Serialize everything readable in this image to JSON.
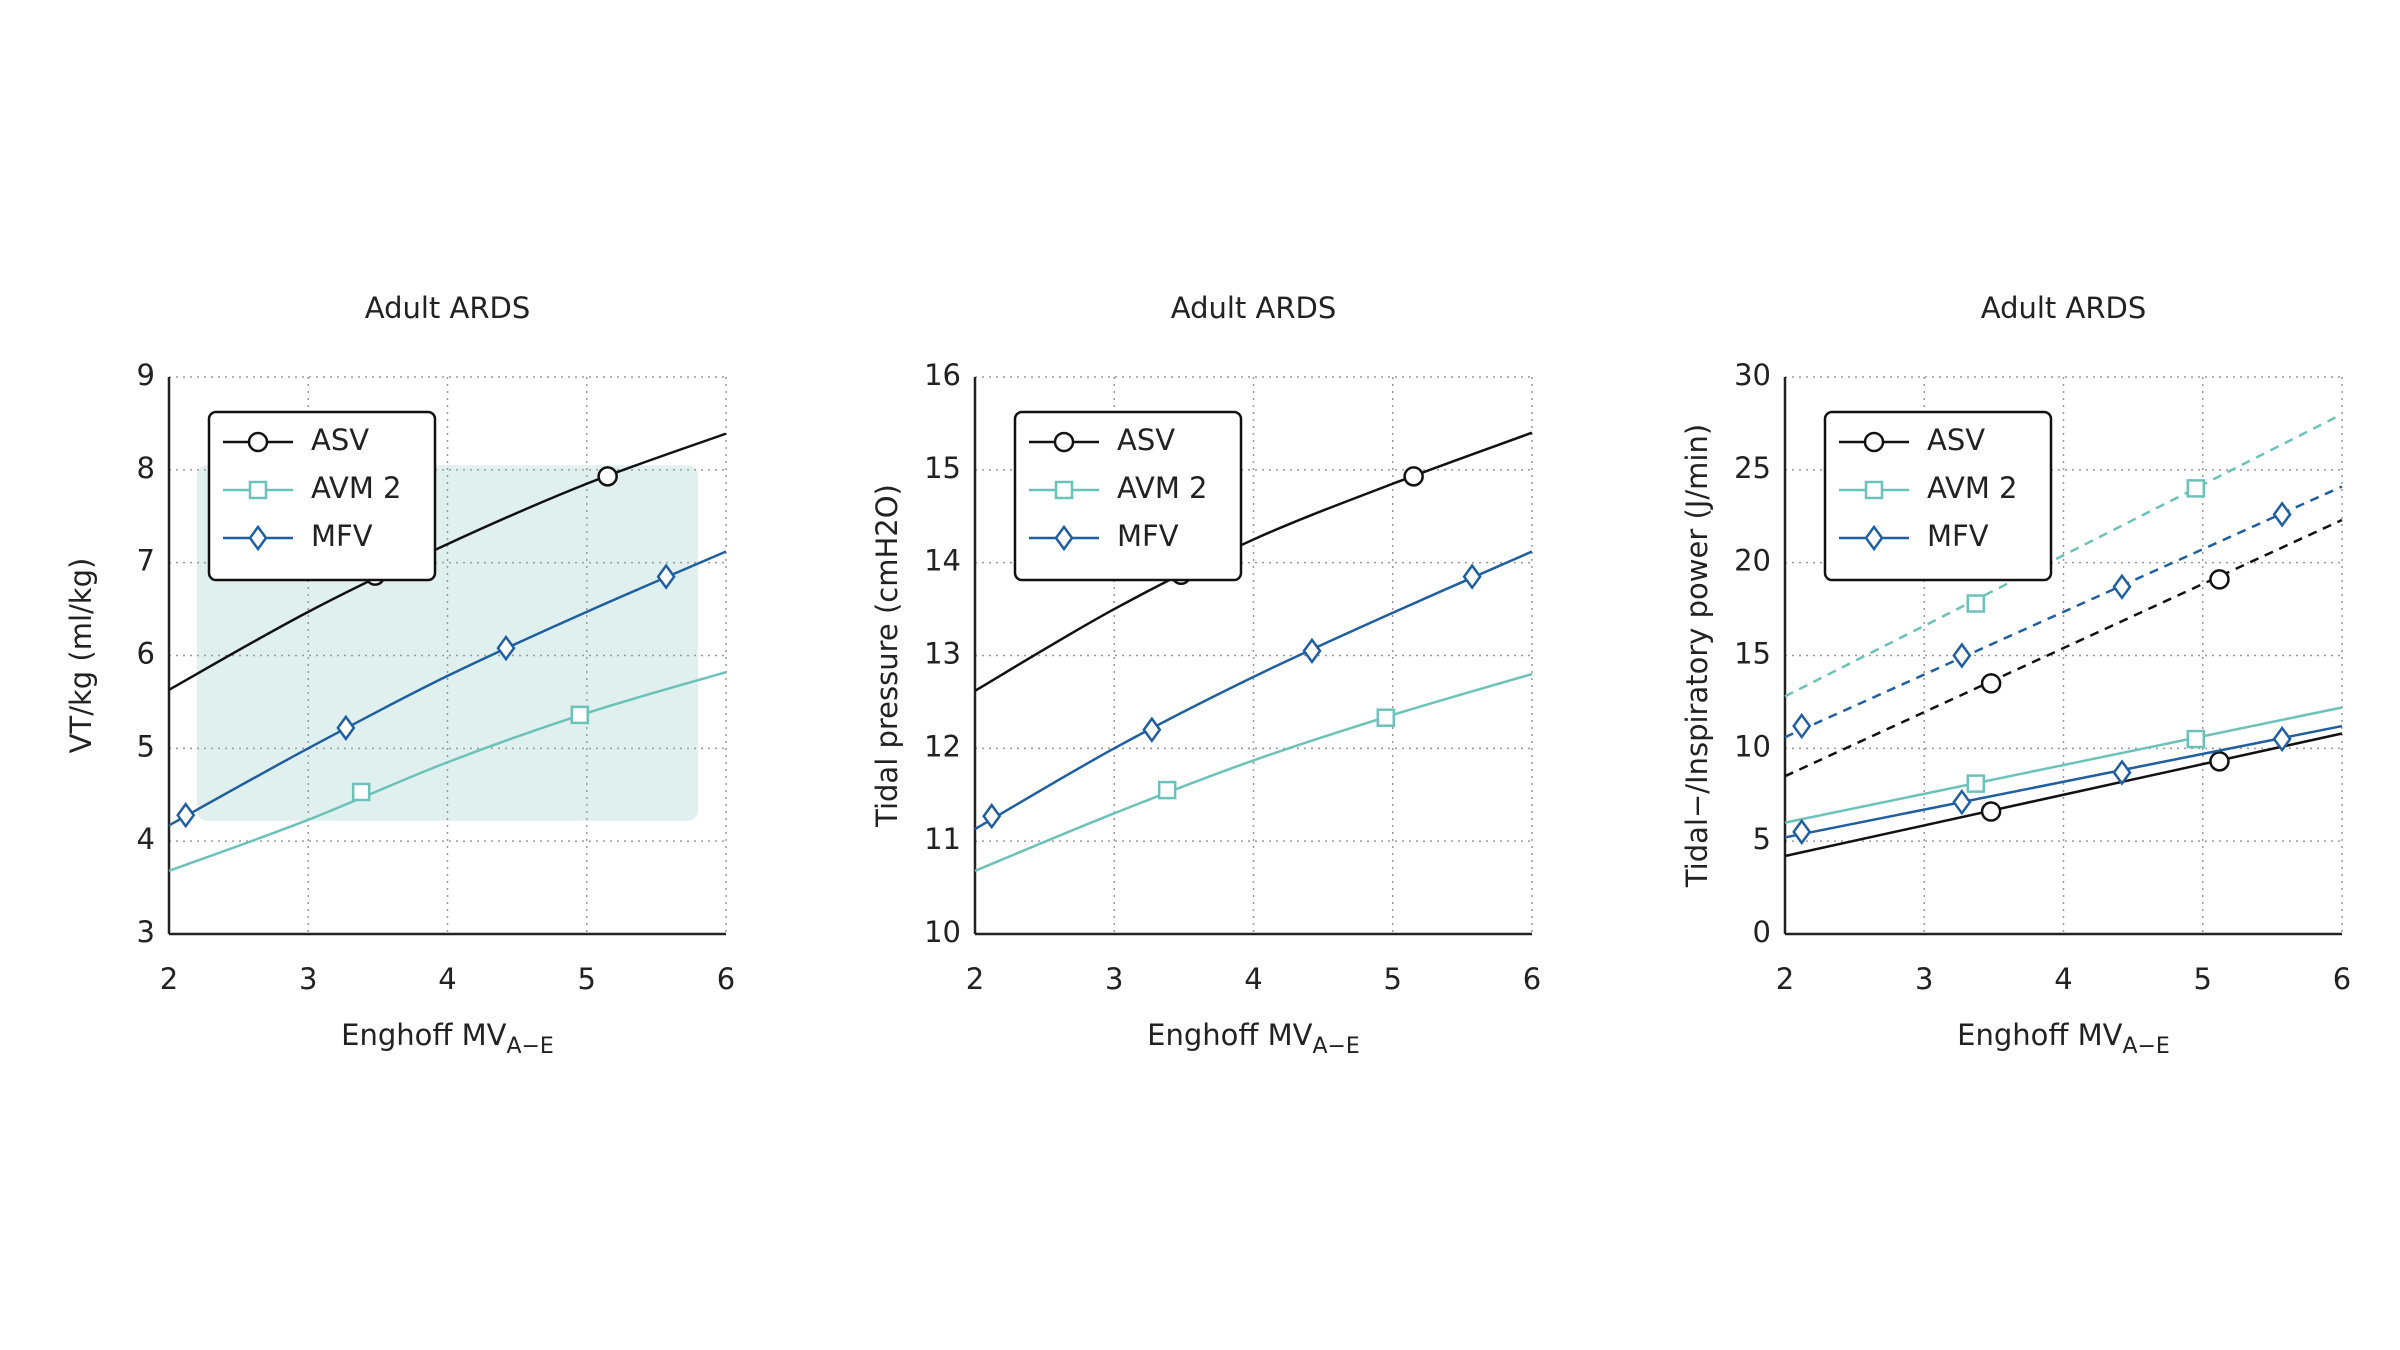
{
  "chart_data": [
    {
      "type": "line",
      "title": "Adult ARDS",
      "xlabel": {
        "text": "Enghoff MV",
        "subscript": "A−E"
      },
      "ylabel": "VT/kg (ml/kg)",
      "xlim": [
        2,
        6
      ],
      "xticks": [
        2,
        3,
        4,
        5,
        6
      ],
      "ylim": [
        3,
        9
      ],
      "yticks": [
        3,
        4,
        5,
        6,
        7,
        8,
        9
      ],
      "grid": true,
      "legend": "upper left",
      "shaded_region": {
        "xlim": [
          2.2,
          5.8
        ],
        "ylim": [
          4.22,
          8.05
        ],
        "color": "#e0f0ee"
      },
      "series": [
        {
          "name": "ASV",
          "color": "#111111",
          "marker": "circle",
          "lines": [
            {
              "style": "solid",
              "x": [
                2,
                3,
                4,
                5,
                6
              ],
              "values": [
                5.63,
                6.47,
                7.2,
                7.85,
                8.39
              ],
              "marker_x": [
                3.48,
                5.15
              ],
              "marker_values": [
                6.86,
                7.93
              ]
            }
          ]
        },
        {
          "name": "AVM 2",
          "color": "#6cc2b8",
          "marker": "square",
          "lines": [
            {
              "style": "solid",
              "x": [
                2,
                3,
                4,
                5,
                6
              ],
              "values": [
                3.68,
                4.23,
                4.85,
                5.38,
                5.82
              ],
              "marker_x": [
                3.38,
                4.95
              ],
              "marker_values": [
                4.53,
                5.36
              ]
            }
          ]
        },
        {
          "name": "MFV",
          "color": "#1f5fa0",
          "marker": "diamond",
          "lines": [
            {
              "style": "solid",
              "x": [
                2,
                3,
                4,
                5,
                6
              ],
              "values": [
                4.17,
                5.0,
                5.78,
                6.47,
                7.12
              ],
              "marker_x": [
                2.12,
                3.27,
                4.42,
                5.57
              ],
              "marker_values": [
                4.28,
                5.22,
                6.08,
                6.85
              ]
            }
          ]
        }
      ]
    },
    {
      "type": "line",
      "title": "Adult ARDS",
      "xlabel": {
        "text": "Enghoff MV",
        "subscript": "A−E"
      },
      "ylabel": "Tidal pressure (cmH2O)",
      "xlim": [
        2,
        6
      ],
      "xticks": [
        2,
        3,
        4,
        5,
        6
      ],
      "ylim": [
        10,
        16
      ],
      "yticks": [
        10,
        11,
        12,
        13,
        14,
        15,
        16
      ],
      "grid": true,
      "legend": "upper left",
      "series": [
        {
          "name": "ASV",
          "color": "#111111",
          "marker": "circle",
          "lines": [
            {
              "style": "solid",
              "x": [
                2,
                3,
                4,
                5,
                6
              ],
              "values": [
                12.62,
                13.5,
                14.25,
                14.85,
                15.4
              ],
              "marker_x": [
                3.48,
                5.15
              ],
              "marker_values": [
                13.87,
                14.93
              ]
            }
          ]
        },
        {
          "name": "AVM 2",
          "color": "#6cc2b8",
          "marker": "square",
          "lines": [
            {
              "style": "solid",
              "x": [
                2,
                3,
                4,
                5,
                6
              ],
              "values": [
                10.68,
                11.3,
                11.87,
                12.36,
                12.8
              ],
              "marker_x": [
                3.38,
                4.95
              ],
              "marker_values": [
                11.55,
                12.33
              ]
            }
          ]
        },
        {
          "name": "MFV",
          "color": "#1f5fa0",
          "marker": "diamond",
          "lines": [
            {
              "style": "solid",
              "x": [
                2,
                3,
                4,
                5,
                6
              ],
              "values": [
                11.13,
                12.0,
                12.77,
                13.46,
                14.12
              ],
              "marker_x": [
                2.12,
                3.27,
                4.42,
                5.57
              ],
              "marker_values": [
                11.27,
                12.2,
                13.05,
                13.85
              ]
            }
          ]
        }
      ]
    },
    {
      "type": "line",
      "title": "Adult ARDS",
      "xlabel": {
        "text": "Enghoff MV",
        "subscript": "A−E"
      },
      "ylabel": "Tidal−/Inspiratory power (J/min)",
      "xlim": [
        2,
        6
      ],
      "xticks": [
        2,
        3,
        4,
        5,
        6
      ],
      "ylim": [
        0,
        30
      ],
      "yticks": [
        0,
        5,
        10,
        15,
        20,
        25,
        30
      ],
      "grid": true,
      "legend": "upper left",
      "series": [
        {
          "name": "ASV",
          "color": "#111111",
          "marker": "circle",
          "lines": [
            {
              "style": "solid",
              "x": [
                2,
                6
              ],
              "values": [
                4.2,
                10.8
              ],
              "marker_x": [
                3.48,
                5.12
              ],
              "marker_values": [
                6.6,
                9.3
              ]
            },
            {
              "style": "dashed",
              "x": [
                2,
                6
              ],
              "values": [
                8.5,
                22.3
              ],
              "marker_x": [
                3.48,
                5.12
              ],
              "marker_values": [
                13.5,
                19.1
              ]
            }
          ]
        },
        {
          "name": "AVM 2",
          "color": "#6cc2b8",
          "marker": "square",
          "lines": [
            {
              "style": "solid",
              "x": [
                2,
                6
              ],
              "values": [
                6.0,
                12.2
              ],
              "marker_x": [
                3.37,
                4.95
              ],
              "marker_values": [
                8.1,
                10.5
              ]
            },
            {
              "style": "dashed",
              "x": [
                2,
                6
              ],
              "values": [
                12.8,
                28.0
              ],
              "marker_x": [
                3.37,
                4.95
              ],
              "marker_values": [
                17.8,
                24.0
              ]
            }
          ]
        },
        {
          "name": "MFV",
          "color": "#1f5fa0",
          "marker": "diamond",
          "lines": [
            {
              "style": "solid",
              "x": [
                2,
                6
              ],
              "values": [
                5.2,
                11.2
              ],
              "marker_x": [
                2.12,
                3.27,
                4.42,
                5.57
              ],
              "marker_values": [
                5.5,
                7.1,
                8.7,
                10.5
              ]
            },
            {
              "style": "dashed",
              "x": [
                2,
                6
              ],
              "values": [
                10.6,
                24.1
              ],
              "marker_x": [
                2.12,
                3.27,
                4.42,
                5.57
              ],
              "marker_values": [
                11.2,
                15.0,
                18.7,
                22.6
              ]
            }
          ]
        }
      ]
    }
  ]
}
